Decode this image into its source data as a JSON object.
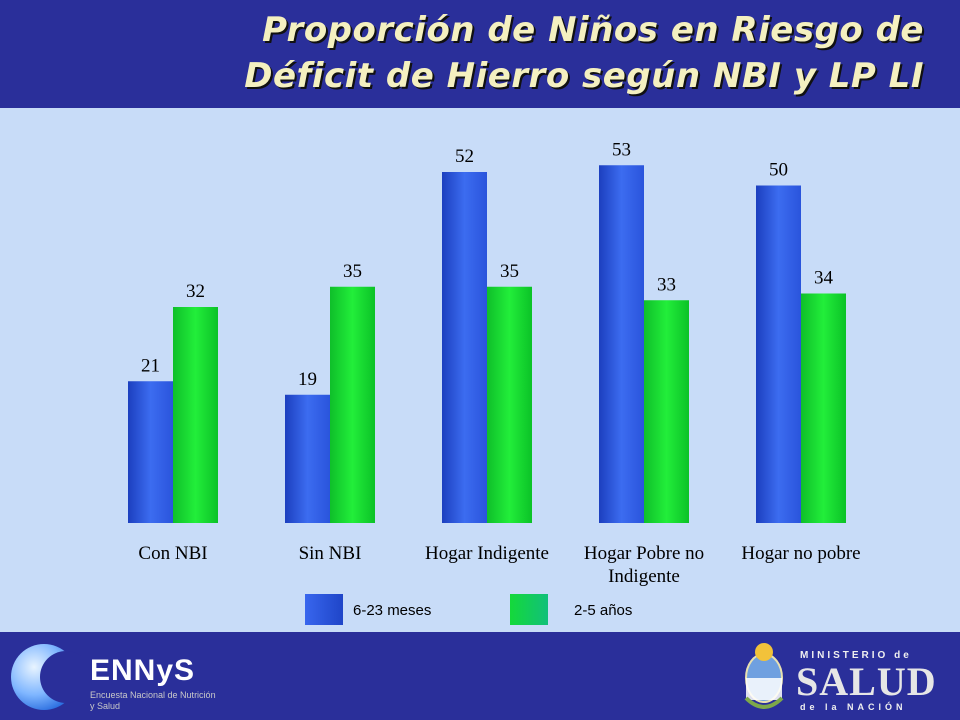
{
  "title": {
    "line1": "Proporción de Niños en Riesgo de",
    "line2": "Déficit de Hierro según NBI y LP LI"
  },
  "chart_data": {
    "type": "bar",
    "categories": [
      [
        "Con NBI"
      ],
      [
        "Sin NBI"
      ],
      [
        "Hogar Indigente"
      ],
      [
        "Hogar Pobre no",
        "Indigente"
      ],
      [
        "Hogar no pobre"
      ]
    ],
    "series": [
      {
        "name": "6-23 meses",
        "values": [
          21,
          19,
          52,
          53,
          50
        ],
        "color": "#2f5be0"
      },
      {
        "name": "2-5 años",
        "values": [
          32,
          35,
          35,
          33,
          34
        ],
        "color": "#12d630"
      }
    ],
    "ylim": [
      0,
      60
    ],
    "grid": false,
    "legend_position": "bottom"
  },
  "footer": {
    "ennys_name": "ENNyS",
    "ennys_subtitle": "Encuesta Nacional de Nutrición y Salud",
    "ministry_top": "MINISTERIO de",
    "ministry_main": "SALUD",
    "ministry_bottom": "de la NACIÓN"
  },
  "colors": {
    "header_bg": "#2a2f9a",
    "plot_bg": "#c8dcf8",
    "title_text": "#f4f0c0"
  }
}
